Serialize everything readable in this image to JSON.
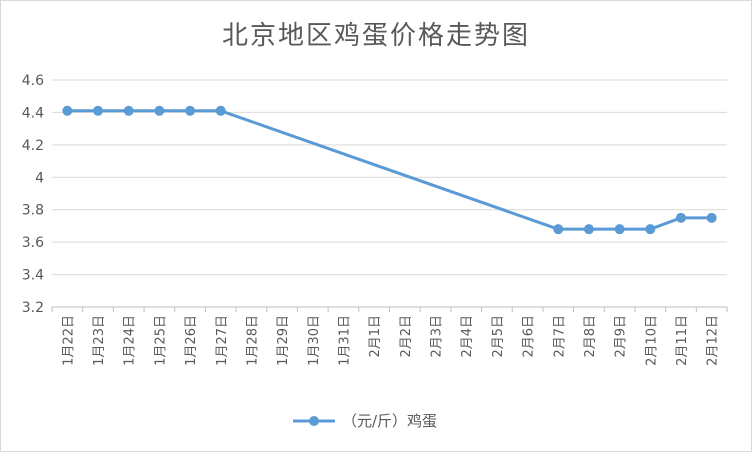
{
  "chart_data": {
    "type": "line",
    "title": "北京地区鸡蛋价格走势图",
    "categories": [
      "1月22日",
      "1月23日",
      "1月24日",
      "1月25日",
      "1月26日",
      "1月27日",
      "1月28日",
      "1月29日",
      "1月30日",
      "1月31日",
      "2月1日",
      "2月2日",
      "2月3日",
      "2月4日",
      "2月5日",
      "2月6日",
      "2月7日",
      "2月8日",
      "2月9日",
      "2月10日",
      "2月11日",
      "2月12日"
    ],
    "series": [
      {
        "name": "（元/斤）鸡蛋",
        "values": [
          4.41,
          4.41,
          4.41,
          4.41,
          4.41,
          4.41,
          null,
          null,
          null,
          null,
          null,
          null,
          null,
          null,
          null,
          null,
          3.68,
          3.68,
          3.68,
          3.68,
          3.75,
          3.75
        ],
        "color": "#5b9bd5"
      }
    ],
    "yticks": [
      "3.2",
      "3.4",
      "3.6",
      "3.8",
      "4",
      "4.2",
      "4.4",
      "4.6"
    ],
    "ylim": [
      3.2,
      4.6
    ],
    "grid": true,
    "legend": "bottom"
  }
}
